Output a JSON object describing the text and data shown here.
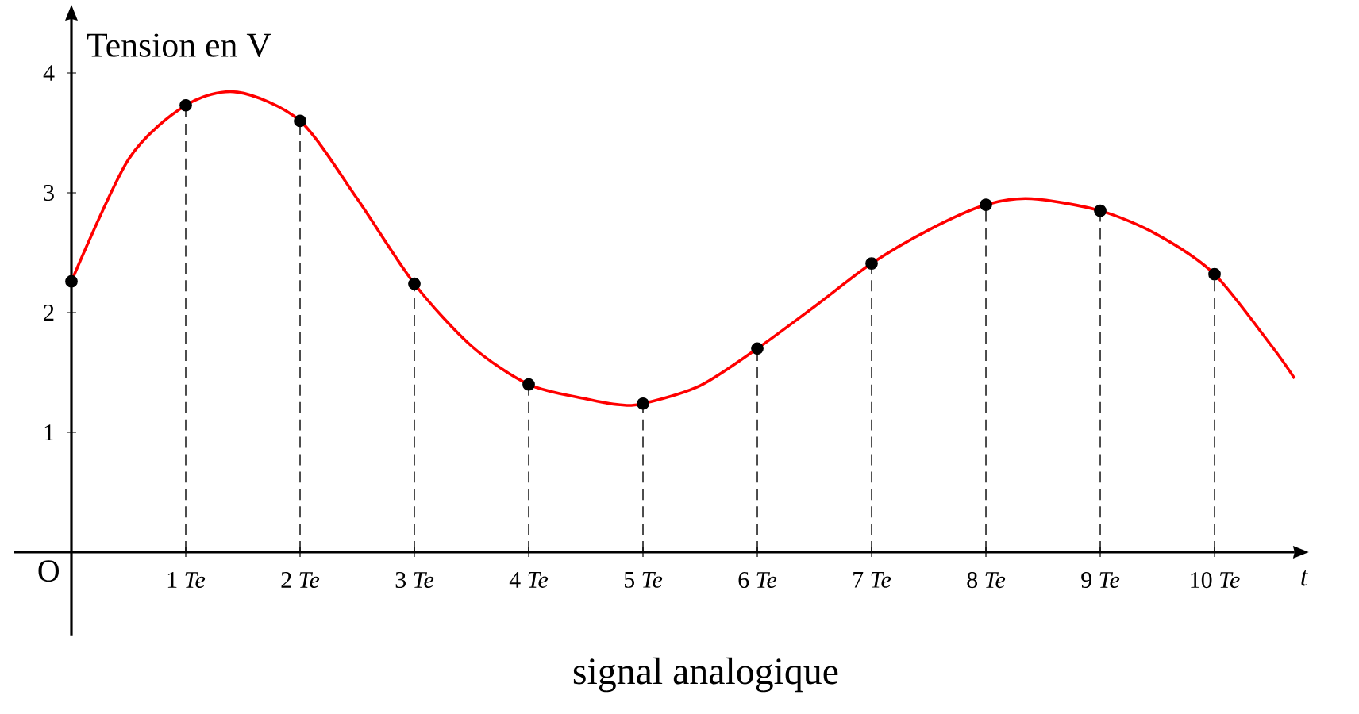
{
  "chart_data": {
    "type": "line",
    "title": "signal analogique",
    "xlabel": "t",
    "ylabel": "Tension en V",
    "xlim": [
      -0.5,
      10.7
    ],
    "ylim": [
      -0.7,
      4.45
    ],
    "xticks": [
      {
        "value": 1,
        "label": "1 *Te*"
      },
      {
        "value": 2,
        "label": "2 *Te*"
      },
      {
        "value": 3,
        "label": "3 *Te*"
      },
      {
        "value": 4,
        "label": "4 *Te*"
      },
      {
        "value": 5,
        "label": "5 *Te*"
      },
      {
        "value": 6,
        "label": "6 *Te*"
      },
      {
        "value": 7,
        "label": "7 *Te*"
      },
      {
        "value": 8,
        "label": "8 *Te*"
      },
      {
        "value": 9,
        "label": "9 *Te*"
      },
      {
        "value": 10,
        "label": "10 *Te*"
      }
    ],
    "yticks": [
      1,
      2,
      3,
      4
    ],
    "annotations": [
      "O"
    ],
    "series": [
      {
        "type": "line",
        "color": "#ff0000",
        "marker": "none",
        "line_style": "solid",
        "x": [
          0,
          0.5,
          1,
          1.45,
          2,
          2.5,
          3,
          3.5,
          4,
          4.5,
          4.8,
          5,
          5.5,
          6,
          6.5,
          7,
          7.5,
          8,
          8.4,
          9,
          9.5,
          10,
          10.5,
          10.7
        ],
        "values": [
          2.26,
          3.28,
          3.73,
          3.84,
          3.6,
          2.95,
          2.24,
          1.72,
          1.4,
          1.28,
          1.23,
          1.24,
          1.39,
          1.7,
          2.05,
          2.41,
          2.69,
          2.9,
          2.95,
          2.85,
          2.65,
          2.32,
          1.72,
          1.45
        ]
      },
      {
        "type": "lollipop",
        "color": "#000000",
        "marker": "circle",
        "line_style": "dashed",
        "x": [
          0,
          1,
          2,
          3,
          4,
          5,
          6,
          7,
          8,
          9,
          10
        ],
        "values": [
          2.26,
          3.73,
          3.6,
          2.24,
          1.4,
          1.24,
          1.7,
          2.41,
          2.9,
          2.85,
          2.32
        ]
      }
    ]
  }
}
